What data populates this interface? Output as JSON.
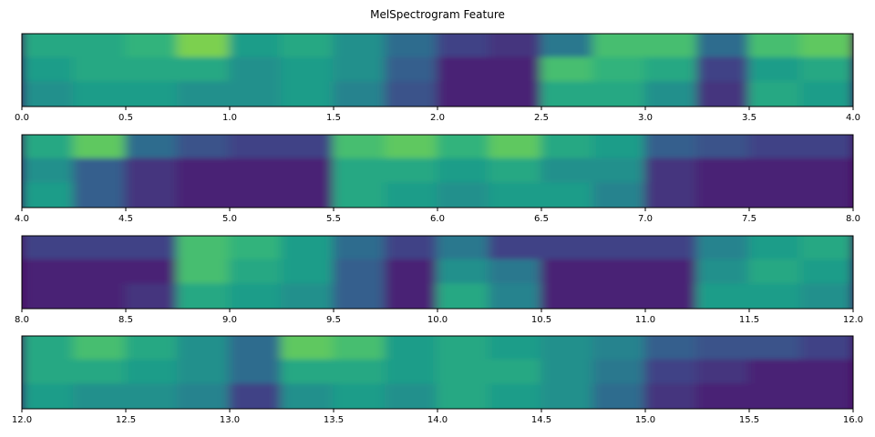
{
  "chart_data": {
    "type": "heatmap",
    "title": "MelSpectrogram Feature",
    "colormap": "viridis",
    "panels": [
      {
        "xlim": [
          0,
          4
        ],
        "xticks": [
          {
            "value": 0,
            "label": "0.0"
          },
          {
            "value": 0.5,
            "label": "0.5"
          },
          {
            "value": 1,
            "label": "1.0"
          },
          {
            "value": 1.5,
            "label": "1.5"
          },
          {
            "value": 2,
            "label": "2.0"
          },
          {
            "value": 2.5,
            "label": "2.5"
          },
          {
            "value": 3,
            "label": "3.0"
          },
          {
            "value": 3.5,
            "label": "3.5"
          },
          {
            "value": 4,
            "label": "4.0"
          }
        ],
        "x": [
          0,
          0.25,
          0.5,
          0.75,
          1,
          1.25,
          1.5,
          1.75,
          2,
          2.25,
          2.5,
          2.75,
          3,
          3.25,
          3.5,
          3.75
        ],
        "rows": [
          [
            0.6,
            0.6,
            0.65,
            0.8,
            0.55,
            0.6,
            0.5,
            0.35,
            0.2,
            0.15,
            0.4,
            0.7,
            0.7,
            0.35,
            0.7,
            0.75
          ],
          [
            0.55,
            0.6,
            0.6,
            0.6,
            0.5,
            0.55,
            0.5,
            0.3,
            0.1,
            0.1,
            0.7,
            0.65,
            0.6,
            0.2,
            0.55,
            0.6
          ],
          [
            0.5,
            0.55,
            0.55,
            0.5,
            0.5,
            0.55,
            0.45,
            0.25,
            0.1,
            0.1,
            0.6,
            0.6,
            0.5,
            0.15,
            0.6,
            0.55
          ]
        ]
      },
      {
        "xlim": [
          4,
          8
        ],
        "xticks": [
          {
            "value": 4,
            "label": "4.0"
          },
          {
            "value": 4.5,
            "label": "4.5"
          },
          {
            "value": 5,
            "label": "5.0"
          },
          {
            "value": 5.5,
            "label": "5.5"
          },
          {
            "value": 6,
            "label": "6.0"
          },
          {
            "value": 6.5,
            "label": "6.5"
          },
          {
            "value": 7,
            "label": "7.0"
          },
          {
            "value": 7.5,
            "label": "7.5"
          },
          {
            "value": 8,
            "label": "8.0"
          }
        ],
        "x": [
          4,
          4.25,
          4.5,
          4.75,
          5,
          5.25,
          5.5,
          5.75,
          6,
          6.25,
          6.5,
          6.75,
          7,
          7.25,
          7.5,
          7.75
        ],
        "rows": [
          [
            0.6,
            0.75,
            0.35,
            0.25,
            0.2,
            0.2,
            0.7,
            0.75,
            0.65,
            0.75,
            0.6,
            0.55,
            0.3,
            0.25,
            0.2,
            0.2
          ],
          [
            0.5,
            0.3,
            0.15,
            0.1,
            0.1,
            0.1,
            0.6,
            0.6,
            0.55,
            0.6,
            0.5,
            0.5,
            0.15,
            0.1,
            0.1,
            0.1
          ],
          [
            0.55,
            0.3,
            0.15,
            0.1,
            0.1,
            0.1,
            0.6,
            0.55,
            0.5,
            0.55,
            0.55,
            0.45,
            0.15,
            0.1,
            0.1,
            0.1
          ]
        ]
      },
      {
        "xlim": [
          8,
          12
        ],
        "xticks": [
          {
            "value": 8,
            "label": "8.0"
          },
          {
            "value": 8.5,
            "label": "8.5"
          },
          {
            "value": 9,
            "label": "9.0"
          },
          {
            "value": 9.5,
            "label": "9.5"
          },
          {
            "value": 10,
            "label": "10.0"
          },
          {
            "value": 10.5,
            "label": "10.5"
          },
          {
            "value": 11,
            "label": "11.0"
          },
          {
            "value": 11.5,
            "label": "11.5"
          },
          {
            "value": 12,
            "label": "12.0"
          }
        ],
        "x": [
          8,
          8.25,
          8.5,
          8.75,
          9,
          9.25,
          9.5,
          9.75,
          10,
          10.25,
          10.5,
          10.75,
          11,
          11.25,
          11.5,
          11.75
        ],
        "rows": [
          [
            0.2,
            0.2,
            0.2,
            0.7,
            0.65,
            0.55,
            0.35,
            0.2,
            0.4,
            0.2,
            0.2,
            0.2,
            0.2,
            0.45,
            0.55,
            0.6
          ],
          [
            0.1,
            0.1,
            0.1,
            0.7,
            0.6,
            0.55,
            0.3,
            0.1,
            0.5,
            0.4,
            0.1,
            0.1,
            0.1,
            0.5,
            0.6,
            0.55
          ],
          [
            0.1,
            0.1,
            0.15,
            0.6,
            0.55,
            0.5,
            0.3,
            0.1,
            0.6,
            0.45,
            0.1,
            0.1,
            0.1,
            0.55,
            0.55,
            0.5
          ]
        ]
      },
      {
        "xlim": [
          12,
          16
        ],
        "xticks": [
          {
            "value": 12,
            "label": "12.0"
          },
          {
            "value": 12.5,
            "label": "12.5"
          },
          {
            "value": 13,
            "label": "13.0"
          },
          {
            "value": 13.5,
            "label": "13.5"
          },
          {
            "value": 14,
            "label": "14.0"
          },
          {
            "value": 14.5,
            "label": "14.5"
          },
          {
            "value": 15,
            "label": "15.0"
          },
          {
            "value": 15.5,
            "label": "15.5"
          },
          {
            "value": 16,
            "label": "16.0"
          }
        ],
        "x": [
          12,
          12.25,
          12.5,
          12.75,
          13,
          13.25,
          13.5,
          13.75,
          14,
          14.25,
          14.5,
          14.75,
          15,
          15.25,
          15.5,
          15.75
        ],
        "rows": [
          [
            0.6,
            0.7,
            0.6,
            0.5,
            0.35,
            0.75,
            0.7,
            0.55,
            0.6,
            0.55,
            0.5,
            0.45,
            0.3,
            0.25,
            0.25,
            0.2
          ],
          [
            0.6,
            0.6,
            0.55,
            0.5,
            0.35,
            0.6,
            0.6,
            0.55,
            0.6,
            0.6,
            0.5,
            0.4,
            0.2,
            0.15,
            0.1,
            0.1
          ],
          [
            0.55,
            0.5,
            0.5,
            0.45,
            0.2,
            0.5,
            0.55,
            0.5,
            0.6,
            0.55,
            0.5,
            0.35,
            0.15,
            0.1,
            0.1,
            0.1
          ]
        ]
      }
    ]
  }
}
